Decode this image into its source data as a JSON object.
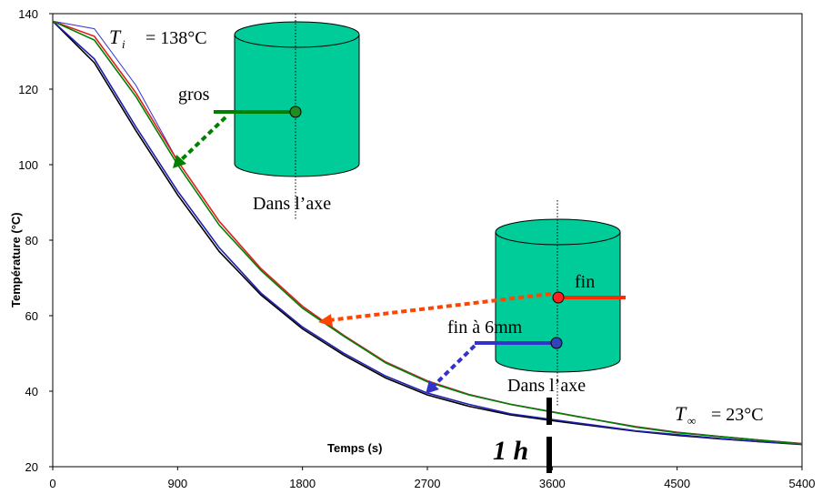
{
  "chart_data": {
    "type": "line",
    "x_label": "Temps (s)",
    "y_label": "Température (°C)",
    "x": [
      0,
      300,
      600,
      900,
      1200,
      1500,
      1800,
      2100,
      2400,
      2700,
      3000,
      3300,
      3600,
      3900,
      4200,
      4500,
      4800,
      5100,
      5400
    ],
    "series": [
      {
        "color": "#000000",
        "values": [
          138,
          127,
          109,
          92,
          77,
          65.5,
          56.5,
          49.5,
          43.5,
          39,
          36,
          33.7,
          32.2,
          30.8,
          29.4,
          28.3,
          27.4,
          26.6,
          25.9
        ]
      },
      {
        "color": "#1f1fb0",
        "values": [
          138,
          128,
          110,
          93,
          78,
          66,
          57,
          50,
          44,
          39.5,
          36.5,
          34,
          32.5,
          31,
          29.5,
          28.5,
          27.5,
          26.6,
          26
        ]
      },
      {
        "color": "#3333cc",
        "values": [
          138,
          136,
          121,
          101,
          85,
          72.5,
          62.5,
          54.8,
          47.8,
          42.8,
          39.2,
          36.6,
          34.6,
          32.6,
          30.7,
          29.2,
          28.1,
          27.1,
          26.2
        ]
      },
      {
        "color": "#e02020",
        "values": [
          138,
          134,
          119,
          101,
          85,
          72.5,
          62.5,
          54.7,
          47.7,
          42.7,
          39.1,
          36.5,
          34.5,
          32.5,
          30.6,
          29.1,
          28,
          27,
          26.1
        ]
      },
      {
        "color": "#008000",
        "values": [
          138,
          133,
          118,
          100,
          84,
          72,
          62,
          54.5,
          47.5,
          42.5,
          39,
          36.5,
          34.5,
          32.5,
          30.5,
          29,
          28,
          27,
          26
        ]
      }
    ],
    "xlim": [
      0,
      5400
    ],
    "xticks": [
      0,
      900,
      1800,
      2700,
      3600,
      4500,
      5400
    ],
    "ylim": [
      20,
      140
    ],
    "yticks": [
      20,
      40,
      60,
      80,
      100,
      120,
      140
    ],
    "annotations": {
      "ti_symbol": "T",
      "ti_sub": "i",
      "ti_value": "= 138°C",
      "tinf_symbol": "T",
      "tinf_sub": "∞",
      "tinf_value": "= 23°C",
      "gros": "gros",
      "fin": "fin",
      "fin6": "fin à 6mm",
      "axe1": "Dans l’axe",
      "axe2": "Dans l’axe",
      "hour": "1 h"
    }
  }
}
